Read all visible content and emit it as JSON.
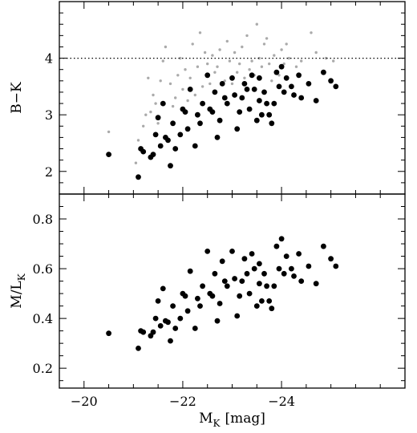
{
  "chart_data": [
    {
      "type": "scatter",
      "panel": "top",
      "ylabel": "B−K",
      "xlim": [
        -19.5,
        -26.5
      ],
      "ylim": [
        1.6,
        5.0
      ],
      "x_ticks": [
        -20,
        -22,
        -24
      ],
      "y_ticks": [
        2,
        3,
        4
      ],
      "reference_line": {
        "y": 4.0,
        "style": "dotted"
      },
      "series": [
        {
          "color": "#000000",
          "marker": "large-filled-circle",
          "points": [
            [
              -20.5,
              2.3
            ],
            [
              -21.1,
              1.9
            ],
            [
              -21.15,
              2.4
            ],
            [
              -21.2,
              2.35
            ],
            [
              -21.35,
              2.25
            ],
            [
              -21.4,
              2.3
            ],
            [
              -21.45,
              2.65
            ],
            [
              -21.5,
              2.95
            ],
            [
              -21.55,
              2.45
            ],
            [
              -21.65,
              2.6
            ],
            [
              -21.7,
              2.55
            ],
            [
              -21.75,
              2.1
            ],
            [
              -21.6,
              3.2
            ],
            [
              -21.8,
              2.85
            ],
            [
              -21.85,
              2.4
            ],
            [
              -21.95,
              2.65
            ],
            [
              -22.05,
              3.05
            ],
            [
              -22.1,
              2.75
            ],
            [
              -22.15,
              3.45
            ],
            [
              -22.25,
              2.45
            ],
            [
              -22.3,
              3.0
            ],
            [
              -22.35,
              2.85
            ],
            [
              -22.4,
              3.2
            ],
            [
              -22.5,
              3.7
            ],
            [
              -22.55,
              3.1
            ],
            [
              -22.6,
              3.05
            ],
            [
              -22.65,
              3.4
            ],
            [
              -22.7,
              2.6
            ],
            [
              -22.75,
              2.9
            ],
            [
              -22.8,
              3.55
            ],
            [
              -22.85,
              3.3
            ],
            [
              -22.9,
              3.2
            ],
            [
              -23.0,
              3.65
            ],
            [
              -23.05,
              3.35
            ],
            [
              -23.1,
              2.75
            ],
            [
              -23.15,
              3.05
            ],
            [
              -23.2,
              3.3
            ],
            [
              -23.25,
              3.55
            ],
            [
              -23.3,
              3.45
            ],
            [
              -23.35,
              3.1
            ],
            [
              -23.4,
              3.7
            ],
            [
              -23.45,
              3.45
            ],
            [
              -23.5,
              2.9
            ],
            [
              -23.55,
              3.25
            ],
            [
              -23.6,
              3.0
            ],
            [
              -23.65,
              3.4
            ],
            [
              -23.7,
              3.2
            ],
            [
              -23.75,
              3.0
            ],
            [
              -23.8,
              2.85
            ],
            [
              -23.85,
              3.2
            ],
            [
              -23.9,
              3.75
            ],
            [
              -23.95,
              3.5
            ],
            [
              -24.0,
              3.85
            ],
            [
              -24.05,
              3.4
            ],
            [
              -24.1,
              3.65
            ],
            [
              -24.2,
              3.5
            ],
            [
              -24.25,
              3.35
            ],
            [
              -24.35,
              3.7
            ],
            [
              -24.4,
              3.3
            ],
            [
              -24.55,
              3.55
            ],
            [
              -24.7,
              3.25
            ],
            [
              -24.85,
              3.75
            ],
            [
              -25.0,
              3.6
            ],
            [
              -25.1,
              3.5
            ],
            [
              -22.0,
              3.1
            ],
            [
              -23.55,
              3.65
            ]
          ]
        },
        {
          "color": "#aaaaaa",
          "marker": "small-filled-circle",
          "points": [
            [
              -20.5,
              2.7
            ],
            [
              -21.05,
              2.15
            ],
            [
              -21.1,
              2.55
            ],
            [
              -21.2,
              2.8
            ],
            [
              -21.25,
              3.0
            ],
            [
              -21.3,
              3.65
            ],
            [
              -21.4,
              3.35
            ],
            [
              -21.45,
              3.2
            ],
            [
              -21.5,
              2.85
            ],
            [
              -21.55,
              3.6
            ],
            [
              -21.6,
              3.95
            ],
            [
              -21.65,
              4.2
            ],
            [
              -21.75,
              3.55
            ],
            [
              -21.8,
              3.15
            ],
            [
              -21.85,
              3.3
            ],
            [
              -21.9,
              3.7
            ],
            [
              -21.95,
              4.0
            ],
            [
              -22.0,
              3.45
            ],
            [
              -22.05,
              3.8
            ],
            [
              -22.1,
              3.25
            ],
            [
              -22.15,
              3.65
            ],
            [
              -22.2,
              4.25
            ],
            [
              -22.3,
              3.85
            ],
            [
              -22.35,
              4.45
            ],
            [
              -22.4,
              3.5
            ],
            [
              -22.45,
              4.1
            ],
            [
              -22.5,
              3.9
            ],
            [
              -22.55,
              3.55
            ],
            [
              -22.6,
              4.05
            ],
            [
              -22.65,
              3.75
            ],
            [
              -22.7,
              3.85
            ],
            [
              -22.75,
              4.15
            ],
            [
              -22.85,
              3.6
            ],
            [
              -22.9,
              4.3
            ],
            [
              -22.95,
              3.95
            ],
            [
              -23.0,
              3.55
            ],
            [
              -23.05,
              4.1
            ],
            [
              -23.1,
              3.75
            ],
            [
              -23.15,
              3.9
            ],
            [
              -23.2,
              4.2
            ],
            [
              -23.25,
              3.65
            ],
            [
              -23.3,
              4.4
            ],
            [
              -23.35,
              3.8
            ],
            [
              -23.4,
              3.95
            ],
            [
              -23.45,
              3.7
            ],
            [
              -23.5,
              4.6
            ],
            [
              -23.55,
              4.0
            ],
            [
              -23.6,
              3.85
            ],
            [
              -23.7,
              4.35
            ],
            [
              -23.75,
              3.9
            ],
            [
              -23.8,
              3.6
            ],
            [
              -23.85,
              4.05
            ],
            [
              -23.95,
              3.7
            ],
            [
              -24.0,
              4.15
            ],
            [
              -24.05,
              3.9
            ],
            [
              -24.1,
              4.25
            ],
            [
              -24.15,
              4.0
            ],
            [
              -24.3,
              3.85
            ],
            [
              -24.4,
              3.95
            ],
            [
              -24.6,
              4.45
            ],
            [
              -24.7,
              4.1
            ],
            [
              -24.9,
              4.0
            ],
            [
              -25.05,
              3.95
            ],
            [
              -21.35,
              3.05
            ],
            [
              -22.25,
              3.35
            ],
            [
              -23.65,
              4.25
            ]
          ]
        }
      ]
    },
    {
      "type": "scatter",
      "panel": "bottom",
      "xlabel_main": "M",
      "xlabel_sub": "K",
      "xlabel_unit": "[mag]",
      "ylabel_main": "M/L",
      "ylabel_sub": "K",
      "xlim": [
        -19.5,
        -26.5
      ],
      "ylim": [
        0.12,
        0.9
      ],
      "x_ticks": [
        -20,
        -22,
        -24
      ],
      "y_ticks": [
        0.2,
        0.4,
        0.6,
        0.8
      ],
      "series": [
        {
          "color": "#000000",
          "marker": "large-filled-circle",
          "points": [
            [
              -20.5,
              0.34
            ],
            [
              -21.1,
              0.28
            ],
            [
              -21.15,
              0.35
            ],
            [
              -21.2,
              0.345
            ],
            [
              -21.35,
              0.33
            ],
            [
              -21.4,
              0.345
            ],
            [
              -21.45,
              0.4
            ],
            [
              -21.5,
              0.47
            ],
            [
              -21.55,
              0.37
            ],
            [
              -21.65,
              0.39
            ],
            [
              -21.7,
              0.385
            ],
            [
              -21.75,
              0.31
            ],
            [
              -21.6,
              0.52
            ],
            [
              -21.8,
              0.45
            ],
            [
              -21.85,
              0.36
            ],
            [
              -21.95,
              0.4
            ],
            [
              -22.05,
              0.49
            ],
            [
              -22.1,
              0.43
            ],
            [
              -22.15,
              0.59
            ],
            [
              -22.25,
              0.36
            ],
            [
              -22.3,
              0.48
            ],
            [
              -22.35,
              0.45
            ],
            [
              -22.4,
              0.53
            ],
            [
              -22.5,
              0.67
            ],
            [
              -22.55,
              0.5
            ],
            [
              -22.6,
              0.49
            ],
            [
              -22.65,
              0.58
            ],
            [
              -22.7,
              0.39
            ],
            [
              -22.75,
              0.46
            ],
            [
              -22.8,
              0.63
            ],
            [
              -22.85,
              0.55
            ],
            [
              -22.9,
              0.53
            ],
            [
              -23.0,
              0.67
            ],
            [
              -23.05,
              0.56
            ],
            [
              -23.1,
              0.41
            ],
            [
              -23.15,
              0.49
            ],
            [
              -23.2,
              0.55
            ],
            [
              -23.25,
              0.64
            ],
            [
              -23.3,
              0.58
            ],
            [
              -23.35,
              0.5
            ],
            [
              -23.4,
              0.66
            ],
            [
              -23.45,
              0.6
            ],
            [
              -23.5,
              0.45
            ],
            [
              -23.55,
              0.54
            ],
            [
              -23.6,
              0.47
            ],
            [
              -23.65,
              0.58
            ],
            [
              -23.7,
              0.53
            ],
            [
              -23.75,
              0.47
            ],
            [
              -23.8,
              0.44
            ],
            [
              -23.85,
              0.53
            ],
            [
              -23.9,
              0.69
            ],
            [
              -23.95,
              0.6
            ],
            [
              -24.0,
              0.72
            ],
            [
              -24.05,
              0.58
            ],
            [
              -24.1,
              0.65
            ],
            [
              -24.2,
              0.6
            ],
            [
              -24.25,
              0.57
            ],
            [
              -24.35,
              0.66
            ],
            [
              -24.4,
              0.55
            ],
            [
              -24.55,
              0.61
            ],
            [
              -24.7,
              0.54
            ],
            [
              -24.85,
              0.69
            ],
            [
              -25.0,
              0.64
            ],
            [
              -25.1,
              0.61
            ],
            [
              -22.0,
              0.5
            ],
            [
              -23.55,
              0.62
            ]
          ]
        }
      ]
    }
  ]
}
